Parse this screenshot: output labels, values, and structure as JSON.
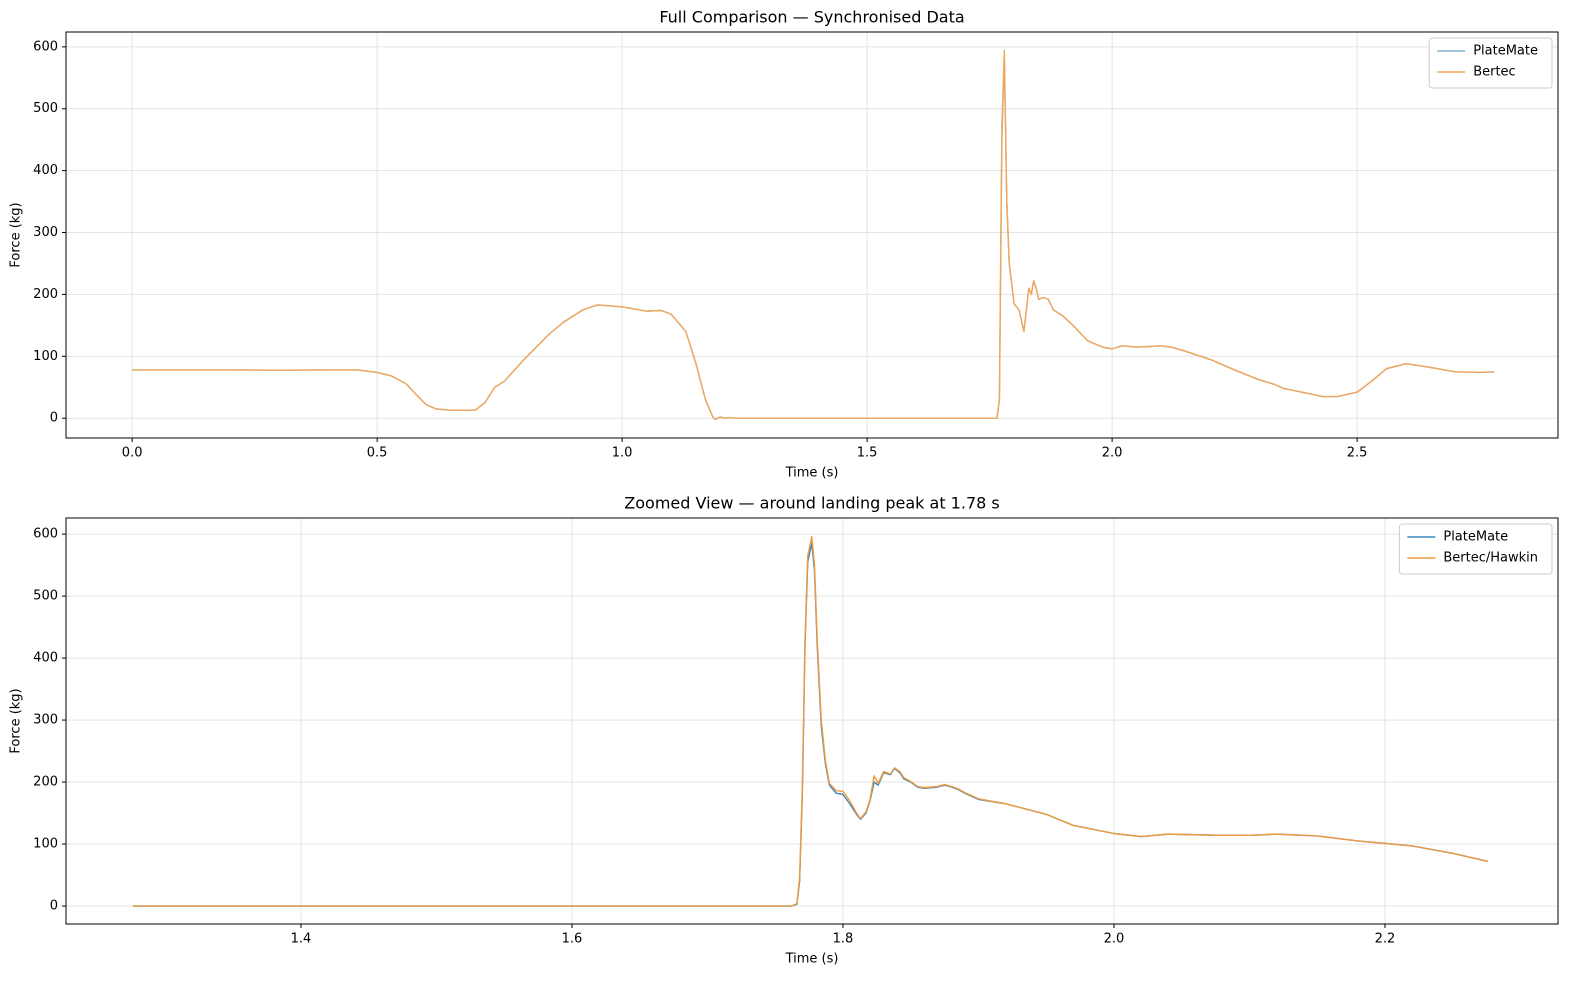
{
  "chart_data": [
    {
      "type": "line",
      "title": "Full Comparison — Synchronised Data",
      "xlabel": "Time (s)",
      "ylabel": "Force (kg)",
      "x": [
        0,
        0.1,
        0.2,
        0.3,
        0.4,
        0.46,
        0.5,
        0.53,
        0.56,
        0.58,
        0.6,
        0.62,
        0.65,
        0.7,
        0.72,
        0.74,
        0.76,
        0.8,
        0.85,
        0.88,
        0.92,
        0.95,
        1.0,
        1.05,
        1.08,
        1.1,
        1.13,
        1.15,
        1.17,
        1.185,
        1.19,
        1.2,
        1.21,
        1.22,
        1.23,
        1.5,
        1.765,
        1.77,
        1.775,
        1.78,
        1.785,
        1.79,
        1.8,
        1.81,
        1.82,
        1.83,
        1.835,
        1.84,
        1.845,
        1.85,
        1.86,
        1.87,
        1.88,
        1.9,
        1.92,
        1.95,
        1.98,
        2.0,
        2.02,
        2.05,
        2.08,
        2.1,
        2.12,
        2.15,
        2.2,
        2.25,
        2.3,
        2.33,
        2.35,
        2.4,
        2.43,
        2.46,
        2.5,
        2.53,
        2.56,
        2.6,
        2.65,
        2.7,
        2.75,
        2.78
      ],
      "series": [
        {
          "name": "PlateMate",
          "color": "#7fb0d6",
          "values": [
            78,
            78,
            78,
            77.5,
            78,
            78,
            74,
            68,
            55,
            38,
            22,
            15,
            13,
            13,
            25,
            50,
            60,
            95,
            135,
            155,
            175,
            183,
            180,
            173,
            174,
            168,
            140,
            90,
            30,
            2,
            -2,
            2,
            0,
            1,
            0,
            0,
            0,
            30,
            450,
            585,
            350,
            250,
            185,
            175,
            140,
            210,
            200,
            222,
            210,
            192,
            195,
            192,
            175,
            165,
            150,
            125,
            115,
            112,
            117,
            115,
            116,
            117,
            115,
            108,
            95,
            78,
            62,
            55,
            48,
            40,
            35,
            35,
            42,
            60,
            80,
            88,
            82,
            75,
            74,
            75
          ]
        },
        {
          "name": "Bertec",
          "color": "#f5a658",
          "values": [
            78,
            78,
            78,
            77.5,
            78,
            78,
            74,
            68,
            55,
            38,
            22,
            15,
            13,
            13,
            25,
            50,
            60,
            95,
            135,
            155,
            175,
            183,
            180,
            173,
            174,
            168,
            140,
            90,
            30,
            2,
            -2,
            2,
            0,
            1,
            0,
            0,
            0,
            30,
            470,
            594,
            350,
            250,
            185,
            175,
            140,
            210,
            200,
            222,
            210,
            192,
            195,
            192,
            175,
            165,
            150,
            125,
            115,
            112,
            117,
            115,
            116,
            117,
            115,
            108,
            95,
            78,
            62,
            55,
            48,
            40,
            35,
            35,
            42,
            60,
            80,
            88,
            82,
            75,
            74,
            75
          ]
        }
      ],
      "xlim": [
        -0.135,
        2.91
      ],
      "ylim": [
        -32,
        624
      ],
      "xticks": [
        {
          "value": 0,
          "label": "0.0"
        },
        0.5,
        {
          "value": 1,
          "label": "1.0"
        },
        1.5,
        {
          "value": 2,
          "label": "2.0"
        },
        2.5
      ],
      "yticks": [
        0,
        100,
        200,
        300,
        400,
        500,
        600
      ],
      "grid": true,
      "legend": "upper right"
    },
    {
      "type": "line",
      "title": "Zoomed View — around landing peak at 1.78 s",
      "xlabel": "Time (s)",
      "ylabel": "Force (kg)",
      "x": [
        1.276,
        1.4,
        1.5,
        1.6,
        1.7,
        1.762,
        1.766,
        1.768,
        1.77,
        1.772,
        1.774,
        1.777,
        1.779,
        1.781,
        1.784,
        1.787,
        1.79,
        1.795,
        1.8,
        1.805,
        1.81,
        1.813,
        1.817,
        1.82,
        1.823,
        1.826,
        1.83,
        1.835,
        1.838,
        1.842,
        1.845,
        1.85,
        1.855,
        1.86,
        1.87,
        1.875,
        1.88,
        1.885,
        1.89,
        1.9,
        1.92,
        1.95,
        1.97,
        2.0,
        2.02,
        2.04,
        2.06,
        2.08,
        2.1,
        2.12,
        2.15,
        2.18,
        2.22,
        2.25,
        2.276
      ],
      "series": [
        {
          "name": "PlateMate",
          "color": "#3a87c0",
          "values": [
            0,
            0,
            0,
            0,
            0,
            0,
            3,
            40,
            180,
            420,
            555,
            585,
            540,
            420,
            290,
            230,
            195,
            182,
            180,
            165,
            148,
            140,
            150,
            170,
            200,
            195,
            215,
            212,
            222,
            215,
            205,
            200,
            192,
            190,
            192,
            195,
            192,
            188,
            182,
            172,
            165,
            148,
            130,
            117,
            112,
            116,
            115,
            114,
            114,
            116,
            113,
            105,
            97,
            85,
            72
          ]
        },
        {
          "name": "Bertec/Hawkin",
          "color": "#f09a3e",
          "values": [
            0,
            0,
            0,
            0,
            0,
            0,
            4,
            45,
            190,
            430,
            565,
            596,
            550,
            430,
            300,
            235,
            198,
            186,
            185,
            170,
            150,
            141,
            152,
            172,
            210,
            198,
            217,
            213,
            223,
            217,
            207,
            201,
            193,
            191,
            193,
            196,
            193,
            189,
            183,
            173,
            165,
            148,
            130,
            117,
            112,
            116,
            115,
            114,
            114,
            116,
            113,
            105,
            97,
            85,
            72
          ]
        }
      ],
      "xlim": [
        1.2266,
        2.3277
      ],
      "ylim": [
        -29,
        626
      ],
      "xticks": [
        1.4,
        1.6,
        1.8,
        {
          "value": 2,
          "label": "2.0"
        },
        2.2
      ],
      "yticks": [
        0,
        100,
        200,
        300,
        400,
        500,
        600
      ],
      "grid": true,
      "legend": "upper right"
    }
  ]
}
